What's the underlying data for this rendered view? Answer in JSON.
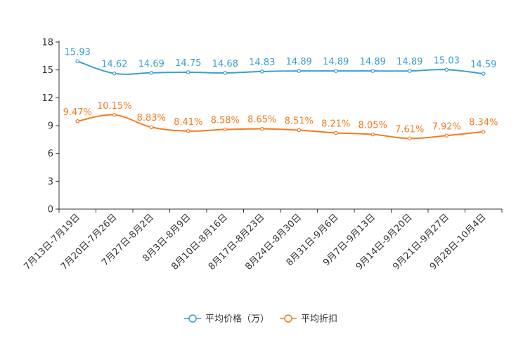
{
  "chart_data": {
    "type": "line",
    "categories": [
      "7月13日-7月19日",
      "7月20日-7月26日",
      "7月27日-8月2日",
      "8月3日-8月9日",
      "8月10日-8月16日",
      "8月17日-8月23日",
      "8月24日-8月30日",
      "8月31日-9月6日",
      "9月7日-9月13日",
      "9月14日-9月20日",
      "9月21日-9月27日",
      "9月28日-10月4日"
    ],
    "ylim": [
      0,
      18
    ],
    "yticks": [
      "0",
      "3",
      "6",
      "9",
      "12",
      "15",
      "18"
    ],
    "series": [
      {
        "name": "平均价格（万）",
        "color": "#3a9fd0",
        "values": [
          15.93,
          14.62,
          14.69,
          14.75,
          14.68,
          14.83,
          14.89,
          14.89,
          14.89,
          14.89,
          15.03,
          14.59
        ],
        "labels": [
          "15.93",
          "14.62",
          "14.69",
          "14.75",
          "14.68",
          "14.83",
          "14.89",
          "14.89",
          "14.89",
          "14.89",
          "15.03",
          "14.59"
        ]
      },
      {
        "name": "平均折扣",
        "color": "#f47a1f",
        "values": [
          9.47,
          10.15,
          8.83,
          8.41,
          8.58,
          8.65,
          8.51,
          8.21,
          8.05,
          7.61,
          7.92,
          8.34
        ],
        "labels": [
          "9.47%",
          "10.15%",
          "8.83%",
          "8.41%",
          "8.58%",
          "8.65%",
          "8.51%",
          "8.21%",
          "8.05%",
          "7.61%",
          "7.92%",
          "8.34%"
        ]
      }
    ],
    "legend_position": "bottom-center"
  }
}
